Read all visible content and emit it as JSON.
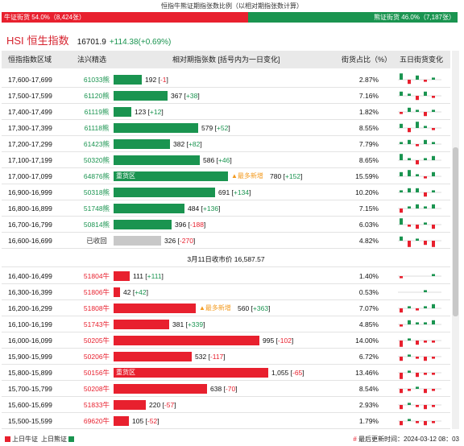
{
  "title": "恒指牛熊证期指张数比例（以相对期指张数计算）",
  "ratio": {
    "bull_label": "牛证街货 54.0%（8,424张）",
    "bear_label": "熊证街货 46.0%（7,187张）",
    "bull_pct": 54.0,
    "bull_color": "#e8202e",
    "bear_color": "#1a9450"
  },
  "index": {
    "code": "HSI",
    "name": "恒生指数",
    "price": "16701.9",
    "change": "+114.38(+0.69%)"
  },
  "headers": {
    "range": "恒指指数区域",
    "warrant": "法兴精选",
    "contracts": "相对期指张数 [括号内为一日变化]",
    "share": "街货占比（%）",
    "trend": "五日街货变化"
  },
  "divider_text": "3月11日收市价 16,587.57",
  "bear_rows": [
    {
      "range": "17,600-17,699",
      "warrant": "61033熊",
      "qty": "192",
      "chg": "-1",
      "value": 192,
      "pct": "2.87%",
      "type": "bear",
      "tag": "",
      "inbar": ""
    },
    {
      "range": "17,500-17,599",
      "warrant": "61120熊",
      "qty": "367",
      "chg": "+38",
      "value": 367,
      "pct": "7.16%",
      "type": "bear",
      "tag": "",
      "inbar": ""
    },
    {
      "range": "17,400-17,499",
      "warrant": "61119熊",
      "qty": "123",
      "chg": "+12",
      "value": 123,
      "pct": "1.82%",
      "type": "bear",
      "tag": "",
      "inbar": ""
    },
    {
      "range": "17,300-17,399",
      "warrant": "61118熊",
      "qty": "579",
      "chg": "+52",
      "value": 579,
      "pct": "8.55%",
      "type": "bear",
      "tag": "",
      "inbar": ""
    },
    {
      "range": "17,200-17,299",
      "warrant": "61423熊",
      "qty": "382",
      "chg": "+82",
      "value": 382,
      "pct": "7.79%",
      "type": "bear",
      "tag": "",
      "inbar": ""
    },
    {
      "range": "17,100-17,199",
      "warrant": "50320熊",
      "qty": "586",
      "chg": "+46",
      "value": 586,
      "pct": "8.65%",
      "type": "bear",
      "tag": "",
      "inbar": ""
    },
    {
      "range": "17,000-17,099",
      "warrant": "64876熊",
      "qty": "780",
      "chg": "+152",
      "value": 780,
      "pct": "15.59%",
      "type": "bear",
      "tag": "▲最多新增",
      "inbar": "重货区"
    },
    {
      "range": "16,900-16,999",
      "warrant": "50318熊",
      "qty": "691",
      "chg": "+134",
      "value": 691,
      "pct": "10.20%",
      "type": "bear",
      "tag": "",
      "inbar": ""
    },
    {
      "range": "16,800-16,899",
      "warrant": "51748熊",
      "qty": "484",
      "chg": "+136",
      "value": 484,
      "pct": "7.15%",
      "type": "bear",
      "tag": "",
      "inbar": ""
    },
    {
      "range": "16,700-16,799",
      "warrant": "50814熊",
      "qty": "396",
      "chg": "-188",
      "value": 396,
      "pct": "6.03%",
      "type": "bear",
      "tag": "",
      "inbar": ""
    },
    {
      "range": "16,600-16,699",
      "warrant": "已收回",
      "qty": "326",
      "chg": "-270",
      "value": 326,
      "pct": "4.82%",
      "type": "gray",
      "tag": "",
      "inbar": ""
    }
  ],
  "bull_rows": [
    {
      "range": "16,400-16,499",
      "warrant": "51804牛",
      "qty": "111",
      "chg": "+111",
      "value": 111,
      "pct": "1.40%",
      "type": "bull",
      "tag": "",
      "inbar": ""
    },
    {
      "range": "16,300-16,399",
      "warrant": "51806牛",
      "qty": "42",
      "chg": "+42",
      "value": 42,
      "pct": "0.53%",
      "type": "bull",
      "tag": "",
      "inbar": ""
    },
    {
      "range": "16,200-16,299",
      "warrant": "51808牛",
      "qty": "560",
      "chg": "+363",
      "value": 560,
      "pct": "7.07%",
      "type": "bull",
      "tag": "▲最多新增",
      "inbar": ""
    },
    {
      "range": "16,100-16,199",
      "warrant": "51743牛",
      "qty": "381",
      "chg": "+339",
      "value": 381,
      "pct": "4.85%",
      "type": "bull",
      "tag": "",
      "inbar": ""
    },
    {
      "range": "16,000-16,099",
      "warrant": "50205牛",
      "qty": "995",
      "chg": "-102",
      "value": 995,
      "pct": "14.00%",
      "type": "bull",
      "tag": "",
      "inbar": ""
    },
    {
      "range": "15,900-15,999",
      "warrant": "50206牛",
      "qty": "532",
      "chg": "-117",
      "value": 532,
      "pct": "6.72%",
      "type": "bull",
      "tag": "",
      "inbar": ""
    },
    {
      "range": "15,800-15,899",
      "warrant": "50156牛",
      "qty": "1,055",
      "chg": "-65",
      "value": 1055,
      "pct": "13.46%",
      "type": "bull",
      "tag": "",
      "inbar": "重货区"
    },
    {
      "range": "15,700-15,799",
      "warrant": "50208牛",
      "qty": "638",
      "chg": "-70",
      "value": 638,
      "pct": "8.54%",
      "type": "bull",
      "tag": "",
      "inbar": ""
    },
    {
      "range": "15,600-15,699",
      "warrant": "51833牛",
      "qty": "220",
      "chg": "-57",
      "value": 220,
      "pct": "2.93%",
      "type": "bull",
      "tag": "",
      "inbar": ""
    },
    {
      "range": "15,500-15,599",
      "warrant": "69620牛",
      "qty": "105",
      "chg": "-52",
      "value": 105,
      "pct": "1.79%",
      "type": "bull",
      "tag": "",
      "inbar": ""
    }
  ],
  "legend": {
    "bull": "上日牛证",
    "bear": "上日熊证"
  },
  "update_label": "最后更新时间：",
  "update_time": "2024-03-12 08：03"
}
